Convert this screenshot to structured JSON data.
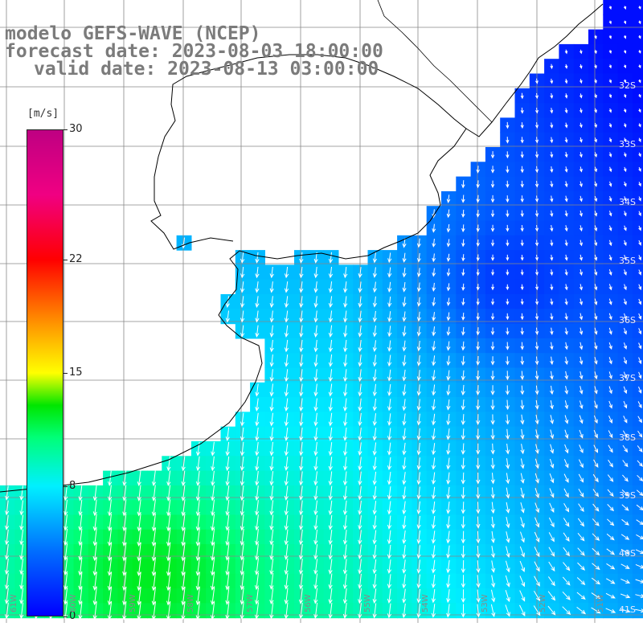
{
  "title": {
    "line1": "modelo GEFS-WAVE (NCEP)",
    "line2": "forecast date: 2023-08-03 18:00:00",
    "line3": "valid date: 2023-08-13 03:00:00"
  },
  "colorbar": {
    "unit": "[m/s]",
    "ticks": [
      {
        "label": "30",
        "value": 30
      },
      {
        "label": "22",
        "value": 22
      },
      {
        "label": "15",
        "value": 15
      },
      {
        "label": "8",
        "value": 8
      },
      {
        "label": "0",
        "value": 0
      }
    ],
    "min": 0,
    "max": 30
  },
  "lat_labels": [
    "32S",
    "33S",
    "34S",
    "35S",
    "36S",
    "37S",
    "38S",
    "39S",
    "40S",
    "41S"
  ],
  "lon_labels": [
    "61W",
    "60W",
    "59W",
    "58W",
    "57W",
    "56W",
    "55W",
    "54W",
    "53W",
    "52W",
    "51W"
  ],
  "colors": {
    "land": "#ffffff",
    "coast": "#000000",
    "grid": "#888888",
    "arrow": "#ffffff"
  }
}
